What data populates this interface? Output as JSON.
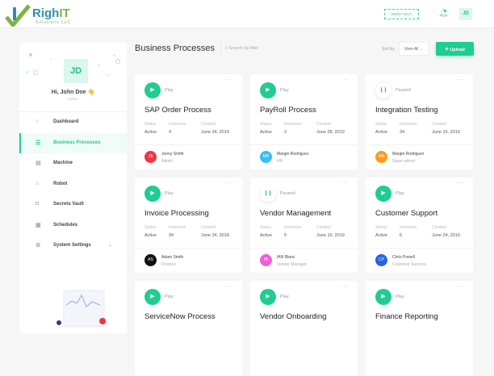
{
  "header": {
    "logo_main": "Righ",
    "logo_accent": "IT",
    "logo_sub": "Solutions LLC",
    "need_help": "NEED HELP",
    "avatar": "JD"
  },
  "sidebar": {
    "avatar": "JD",
    "greeting": "Hi, John Doe 👋",
    "role": "Admin",
    "items": [
      {
        "label": "Dashboard",
        "icon": "home-icon",
        "glyph": "⌂"
      },
      {
        "label": "Business Processes",
        "icon": "layers-icon",
        "glyph": "☰",
        "active": true
      },
      {
        "label": "Machine",
        "icon": "machine-icon",
        "glyph": "▤"
      },
      {
        "label": "Robot",
        "icon": "robot-icon",
        "glyph": "⌂"
      },
      {
        "label": "Secrets Vault",
        "icon": "vault-icon",
        "glyph": "◘"
      },
      {
        "label": "Schedules",
        "icon": "calendar-icon",
        "glyph": "▦"
      },
      {
        "label": "System Settings",
        "icon": "settings-icon",
        "glyph": "⚙",
        "chevron": "⌄"
      }
    ]
  },
  "main": {
    "title": "Business Processes",
    "search_placeholder": "Search by filter",
    "sort_label": "Sort by",
    "sort_value": "View All",
    "upload_label": "Upload",
    "labels": {
      "status": "Status",
      "instances": "Instances",
      "created": "Created"
    },
    "cards": [
      {
        "title": "SAP Order Process",
        "state": "Play",
        "status": "Active",
        "instances": "4",
        "created": "June 24, 2019",
        "user": "Jenny Smith",
        "role": "Admin",
        "initials": "JS",
        "color": "#f4333f"
      },
      {
        "title": "PayRoll Process",
        "state": "Play",
        "status": "Active",
        "instances": "2",
        "created": "June 28, 2019",
        "user": "Margie Rodriguez",
        "role": "HR",
        "initials": "MR",
        "color": "#35c0f4"
      },
      {
        "title": "Integration Testing",
        "state": "Paused",
        "status": "Active",
        "instances": "34",
        "created": "June 15, 2019",
        "user": "Margie Rodriguez",
        "role": "Super admin",
        "initials": "MR",
        "color": "#fb9c1a"
      },
      {
        "title": "Invoice Processing",
        "state": "Play",
        "status": "Active",
        "instances": "34",
        "created": "June 24, 2018",
        "user": "Adam Smith",
        "role": "Finance",
        "initials": "AS",
        "color": "#111111"
      },
      {
        "title": "Vendor Management",
        "state": "Paused",
        "status": "Active",
        "instances": "5",
        "created": "June 10, 2019",
        "user": "IAN Blanc",
        "role": "Vender Manager",
        "initials": "IB",
        "color": "#f25ddc"
      },
      {
        "title": "Customer Support",
        "state": "Play",
        "status": "Active",
        "instances": "6",
        "created": "June 24, 2019",
        "user": "Chris Powell",
        "role": "Customer Success",
        "initials": "CP",
        "color": "#2563eb"
      },
      {
        "title": "ServiceNow Process",
        "state": "Play"
      },
      {
        "title": "Vendor Onboarding",
        "state": "Play"
      },
      {
        "title": "Finance Reporting",
        "state": "Play"
      }
    ]
  },
  "colors": {
    "accent": "#1fcc91"
  }
}
